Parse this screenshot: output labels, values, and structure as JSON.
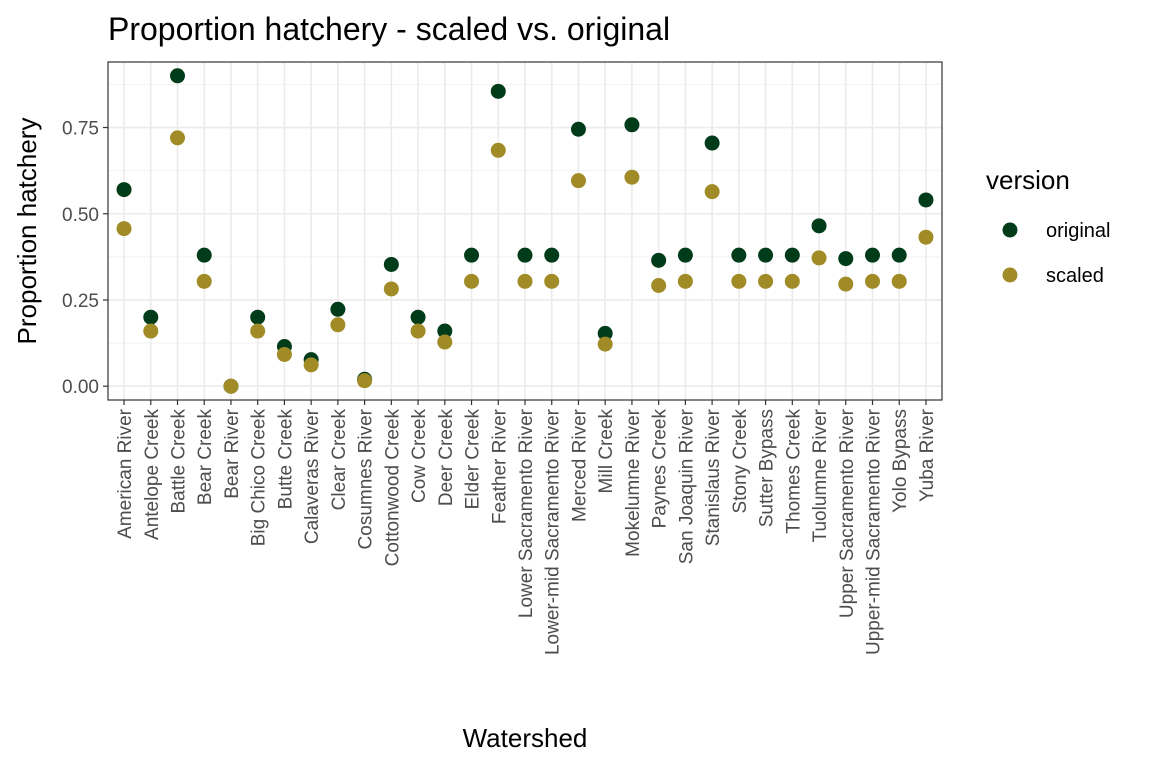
{
  "chart_data": {
    "type": "scatter",
    "title": "Proportion hatchery - scaled vs. original",
    "xlabel": "Watershed",
    "ylabel": "Proportion hatchery",
    "ylim": [
      -0.04,
      0.94
    ],
    "yticks": [
      0.0,
      0.25,
      0.5,
      0.75
    ],
    "ytick_labels": [
      "0.00",
      "0.25",
      "0.50",
      "0.75"
    ],
    "grid": true,
    "legend_placement": "right",
    "legend_title": "version",
    "categories": [
      "American River",
      "Antelope Creek",
      "Battle Creek",
      "Bear Creek",
      "Bear River",
      "Big Chico Creek",
      "Butte Creek",
      "Calaveras River",
      "Clear Creek",
      "Cosumnes River",
      "Cottonwood Creek",
      "Cow Creek",
      "Deer Creek",
      "Elder Creek",
      "Feather River",
      "Lower Sacramento River",
      "Lower-mid Sacramento River",
      "Merced River",
      "Mill Creek",
      "Mokelumne River",
      "Paynes Creek",
      "San Joaquin River",
      "Stanislaus River",
      "Stony Creek",
      "Sutter Bypass",
      "Thomes Creek",
      "Tuolumne River",
      "Upper Sacramento River",
      "Upper-mid Sacramento River",
      "Yolo Bypass",
      "Yuba River"
    ],
    "series": [
      {
        "name": "original",
        "color": "#013c1a",
        "values": [
          0.57,
          0.2,
          0.9,
          0.38,
          0.0,
          0.2,
          0.115,
          0.077,
          0.223,
          0.02,
          0.353,
          0.2,
          0.16,
          0.38,
          0.855,
          0.38,
          0.38,
          0.745,
          0.153,
          0.758,
          0.365,
          0.38,
          0.705,
          0.38,
          0.38,
          0.38,
          0.465,
          0.37,
          0.38,
          0.38,
          0.54
        ]
      },
      {
        "name": "scaled",
        "color": "#a08b26",
        "values": [
          0.457,
          0.16,
          0.72,
          0.304,
          0.0,
          0.16,
          0.092,
          0.062,
          0.178,
          0.016,
          0.282,
          0.16,
          0.128,
          0.304,
          0.684,
          0.304,
          0.304,
          0.596,
          0.122,
          0.606,
          0.292,
          0.304,
          0.564,
          0.304,
          0.304,
          0.304,
          0.372,
          0.296,
          0.304,
          0.304,
          0.432
        ]
      }
    ]
  }
}
